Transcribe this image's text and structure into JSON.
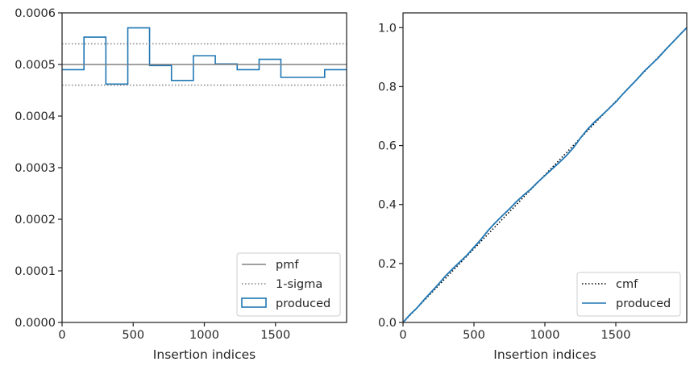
{
  "chart_data": [
    {
      "type": "histogram",
      "xlabel": "Insertion indices",
      "xlim": [
        0,
        2000
      ],
      "ylim": [
        0,
        0.0006
      ],
      "xticks": [
        0,
        500,
        1000,
        1500
      ],
      "xtick_labels": [
        "0",
        "500",
        "1000",
        "1500"
      ],
      "yticks": [
        0,
        0.0001,
        0.0002,
        0.0003,
        0.0004,
        0.0005,
        0.0006
      ],
      "ytick_labels": [
        "0.0000",
        "0.0001",
        "0.0002",
        "0.0003",
        "0.0004",
        "0.0005",
        "0.0006"
      ],
      "bin_edges": [
        0,
        154,
        308,
        462,
        615,
        769,
        923,
        1077,
        1231,
        1385,
        1538,
        1692,
        1846,
        2000
      ],
      "series": [
        {
          "name": "produced",
          "style": "step",
          "color": "#1f77b4",
          "values": [
            0.00049,
            0.000553,
            0.000462,
            0.000571,
            0.000498,
            0.000469,
            0.000517,
            0.000501,
            0.00049,
            0.00051,
            0.000475,
            0.000475,
            0.00049
          ]
        },
        {
          "name": "pmf",
          "style": "hline",
          "color": "#808080",
          "value": 0.0005
        },
        {
          "name": "1-sigma",
          "style": "hline-dotted",
          "color": "#808080",
          "values": [
            0.00054,
            0.00046
          ]
        }
      ],
      "legend": {
        "placement": "lower-right",
        "entries": [
          "pmf",
          "1-sigma",
          "produced"
        ]
      }
    },
    {
      "type": "line",
      "xlabel": "Insertion indices",
      "xlim": [
        0,
        2000
      ],
      "ylim": [
        0,
        1.05
      ],
      "xticks": [
        0,
        500,
        1000,
        1500
      ],
      "xtick_labels": [
        "0",
        "500",
        "1000",
        "1500"
      ],
      "yticks": [
        0,
        0.2,
        0.4,
        0.6,
        0.8,
        1.0
      ],
      "ytick_labels": [
        "0.0",
        "0.2",
        "0.4",
        "0.6",
        "0.8",
        "1.0"
      ],
      "series": [
        {
          "name": "cmf",
          "style": "dotted",
          "color": "#000000",
          "x": [
            0,
            2000
          ],
          "y": [
            0,
            1.0
          ]
        },
        {
          "name": "produced",
          "style": "solid",
          "color": "#1f77b4",
          "x": [
            0,
            50,
            100,
            150,
            200,
            250,
            300,
            350,
            400,
            450,
            500,
            550,
            600,
            650,
            700,
            750,
            800,
            850,
            900,
            950,
            1000,
            1050,
            1100,
            1150,
            1200,
            1250,
            1300,
            1350,
            1400,
            1450,
            1500,
            1550,
            1600,
            1650,
            1700,
            1750,
            1800,
            1850,
            1900,
            1950,
            2000
          ],
          "y": [
            0,
            0.027,
            0.05,
            0.078,
            0.104,
            0.13,
            0.158,
            0.182,
            0.205,
            0.228,
            0.255,
            0.282,
            0.312,
            0.338,
            0.362,
            0.385,
            0.41,
            0.432,
            0.452,
            0.476,
            0.498,
            0.52,
            0.542,
            0.565,
            0.592,
            0.625,
            0.655,
            0.68,
            0.702,
            0.725,
            0.748,
            0.775,
            0.8,
            0.825,
            0.852,
            0.875,
            0.898,
            0.925,
            0.95,
            0.975,
            1.0
          ]
        }
      ],
      "legend": {
        "placement": "lower-right",
        "entries": [
          "cmf",
          "produced"
        ]
      }
    }
  ]
}
